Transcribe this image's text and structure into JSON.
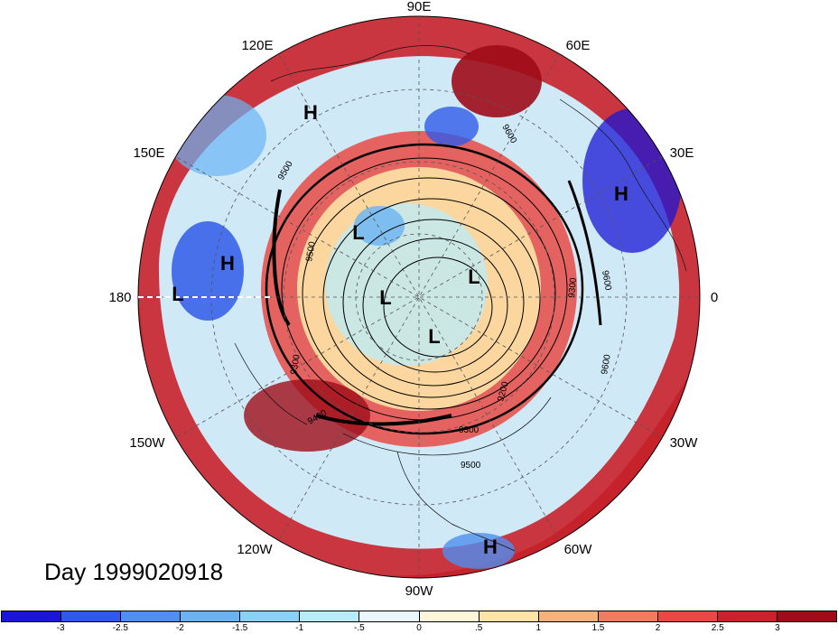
{
  "map": {
    "projection": "north-polar-stereographic",
    "longitude_labels": [
      "90E",
      "60E",
      "30E",
      "0",
      "30W",
      "60W",
      "90W",
      "120W",
      "150W",
      "180",
      "150E",
      "120E"
    ],
    "pressure_systems": [
      {
        "type": "H",
        "location": "Siberia near 120E"
      },
      {
        "type": "H",
        "location": "Eastern Europe near 30E"
      },
      {
        "type": "H",
        "location": "Central Pacific near 175E"
      },
      {
        "type": "L",
        "location": "Dateline low"
      },
      {
        "type": "L",
        "location": "Northeast Siberia"
      },
      {
        "type": "L",
        "location": "Arctic Ocean"
      },
      {
        "type": "L",
        "location": "Barents Sea"
      },
      {
        "type": "L",
        "location": "Canadian Archipelago"
      },
      {
        "type": "H",
        "location": "Caribbean near 60W"
      }
    ],
    "contour_labels": [
      "9600",
      "9500",
      "9500",
      "9300",
      "9300",
      "9400",
      "9200",
      "9300",
      "9500",
      "9600",
      "9600"
    ],
    "field_colors": {
      "strong_positive": "#a50f15",
      "positive": "#de2d26",
      "neutral": "#fff5e6",
      "negative": "#6baed6",
      "strong_negative": "#1c3ad8"
    }
  },
  "caption": {
    "day": "Day 1999020918"
  },
  "colorbar": {
    "colors": [
      "#1a16d4",
      "#2f5ae8",
      "#4f8fef",
      "#6ab3f3",
      "#8ad1f7",
      "#b9ecfb",
      "#e8f8fd",
      "#fff6d9",
      "#fde4a6",
      "#f6b27a",
      "#f07b5f",
      "#e74a44",
      "#c8222b",
      "#9e0c18"
    ],
    "tick_labels": [
      "-3",
      "-2.5",
      "-2",
      "-1.5",
      "-1",
      "-.5",
      "0",
      ".5",
      "1",
      "1.5",
      "2",
      "2.5",
      "3"
    ]
  }
}
